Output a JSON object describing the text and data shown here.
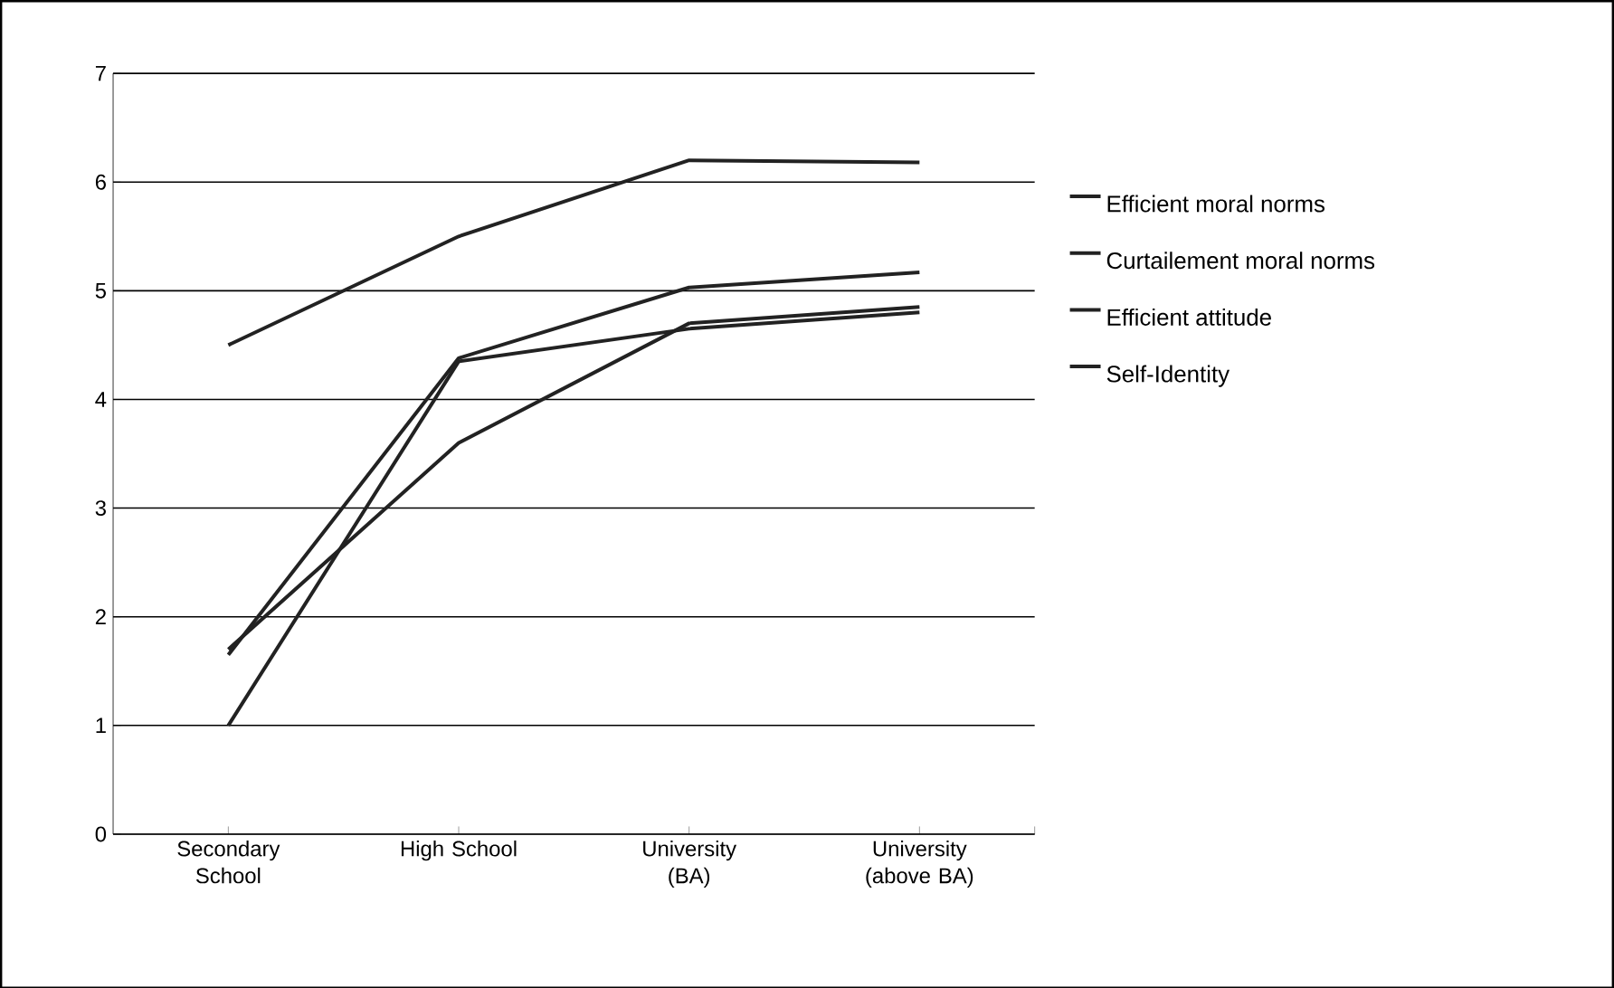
{
  "chart_data": {
    "type": "line",
    "categories": [
      "Secondary School",
      "High School",
      "University (BA)",
      "University (above BA)"
    ],
    "series": [
      {
        "name": "Efficient moral norms",
        "color": "#222222",
        "values": [
          4.5,
          5.5,
          6.2,
          6.18
        ]
      },
      {
        "name": "Curtailement moral norms",
        "color": "#222222",
        "values": [
          1.65,
          4.38,
          5.03,
          5.17
        ]
      },
      {
        "name": "Efficient attitude",
        "color": "#222222",
        "values": [
          1.7,
          3.6,
          4.7,
          4.85
        ]
      },
      {
        "name": "Self-Identity",
        "color": "#222222",
        "values": [
          1.0,
          4.35,
          4.65,
          4.8
        ]
      }
    ],
    "ylim": [
      0,
      7
    ],
    "yticks": [
      0,
      1,
      2,
      3,
      4,
      5,
      6,
      7
    ],
    "grid": "y",
    "legend": "right",
    "marker": "none",
    "line_style": "solid"
  }
}
